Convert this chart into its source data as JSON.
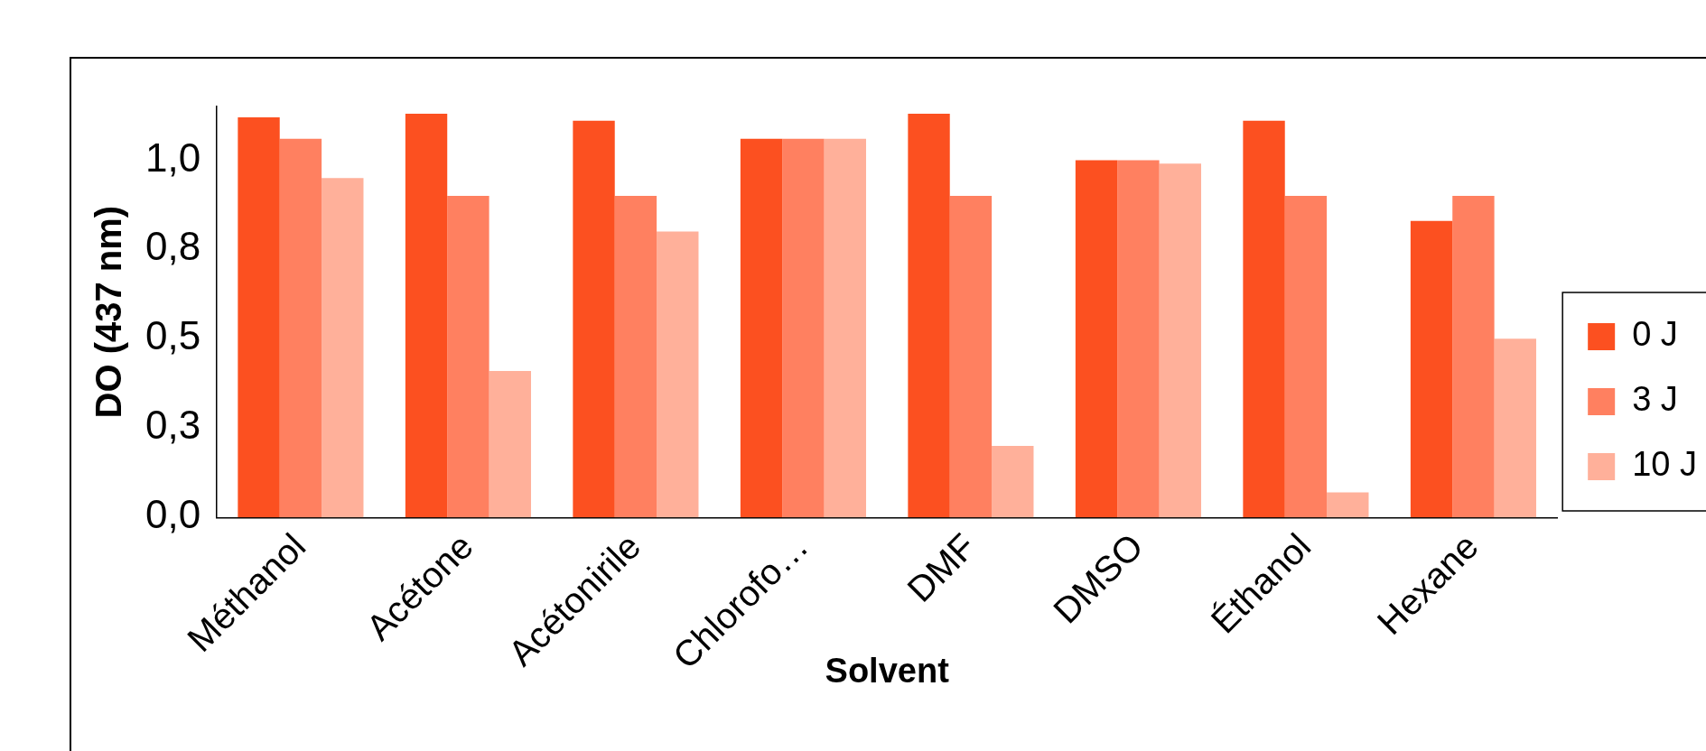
{
  "chart_data": {
    "type": "bar",
    "xlabel": "Solvent",
    "ylabel": "DO (437 nm)",
    "categories": [
      "Méthanol",
      "Acétone",
      "Acétonirile",
      "Chlorofo…",
      "DMF",
      "DMSO",
      "Éthanol",
      "Hexane"
    ],
    "series": [
      {
        "name": "0 J",
        "color": "#fc5020",
        "values": [
          1.12,
          1.13,
          1.11,
          1.06,
          1.13,
          1.0,
          1.11,
          0.83
        ]
      },
      {
        "name": "3 J",
        "color": "#ff8060",
        "values": [
          1.06,
          0.9,
          0.9,
          1.06,
          0.9,
          1.0,
          0.9,
          0.9
        ]
      },
      {
        "name": "10 J",
        "color": "#ffb09a",
        "values": [
          0.95,
          0.41,
          0.8,
          1.06,
          0.2,
          0.99,
          0.07,
          0.5
        ]
      }
    ],
    "ylim": [
      0,
      1.15
    ],
    "yticks": [
      {
        "value": 0,
        "label": "0,0"
      },
      {
        "value": 0.25,
        "label": "0,3"
      },
      {
        "value": 0.5,
        "label": "0,5"
      },
      {
        "value": 0.75,
        "label": "0,8"
      },
      {
        "value": 1,
        "label": "1,0"
      }
    ],
    "grid": false,
    "legend": "right"
  }
}
